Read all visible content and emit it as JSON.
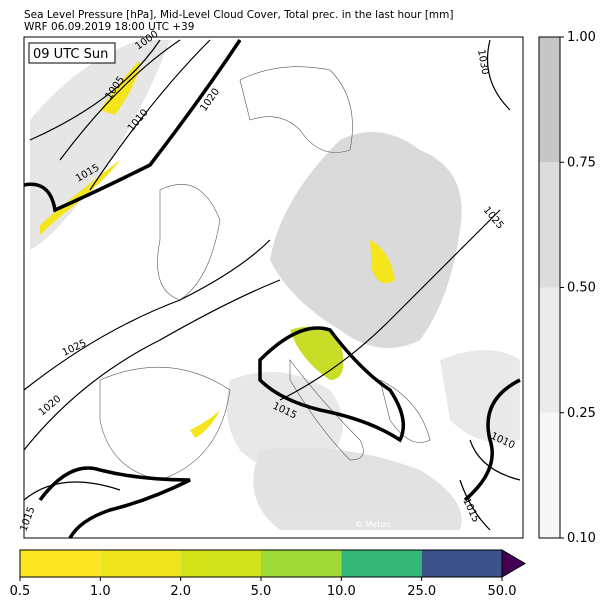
{
  "header": {
    "title": "Sea Level Pressure [hPa], Mid-Level Cloud Cover, Total prec. in the last hour [mm]",
    "subtitle": "WRF 06.09.2019 18:00 UTC +39"
  },
  "map": {
    "time_label": "09 UTC Sun",
    "isobar_labels": [
      "1000",
      "1005",
      "1010",
      "1015",
      "1020",
      "1030",
      "1025",
      "1025",
      "1020",
      "1015",
      "1010",
      "1015",
      "1015"
    ],
    "watermark": "© Meteo"
  },
  "cloud_colorbar": {
    "labels": [
      "0.10",
      "0.25",
      "0.50",
      "0.75",
      "1.00"
    ],
    "colors": [
      "#f7f7f7",
      "#ebebeb",
      "#dcdcdc",
      "#c6c6c6"
    ]
  },
  "precip_colorbar": {
    "labels": [
      "0.5",
      "1.0",
      "2.0",
      "5.0",
      "10.0",
      "25.0",
      "50.0"
    ],
    "colors": [
      "#fde725",
      "#efe51c",
      "#d2e21b",
      "#a0da39",
      "#35b779",
      "#3b528b"
    ],
    "extend_color": "#440154"
  }
}
